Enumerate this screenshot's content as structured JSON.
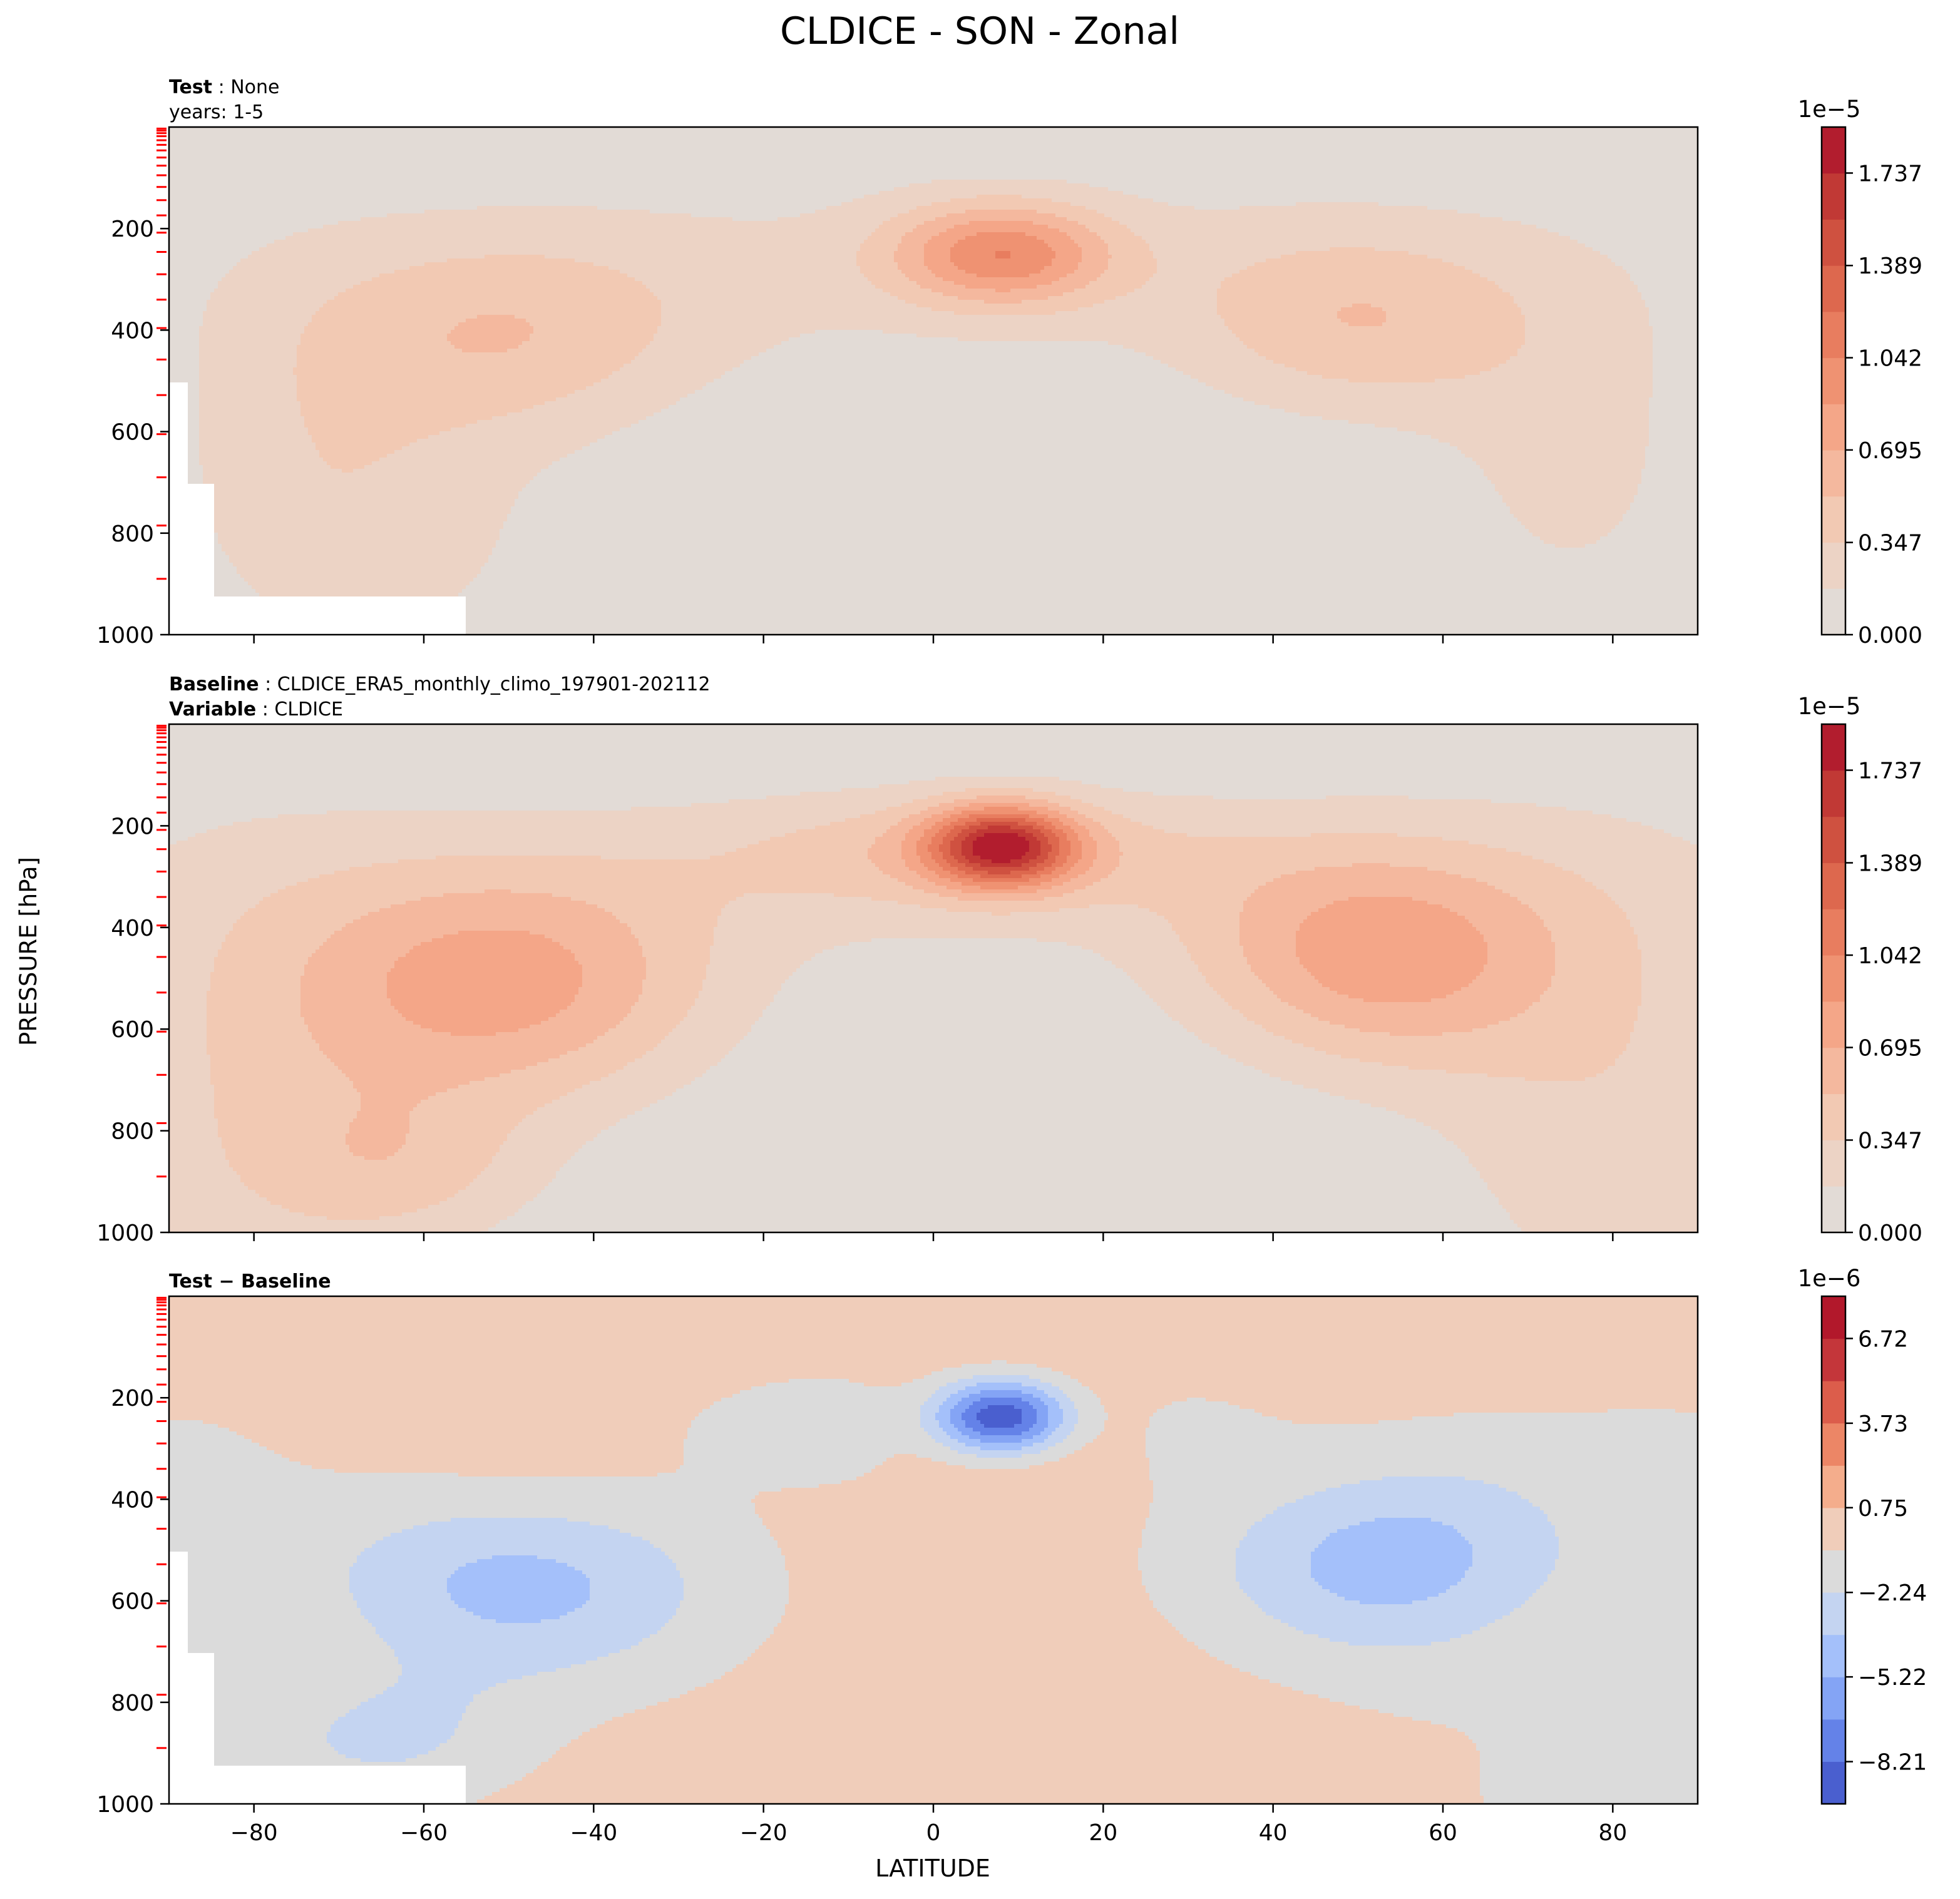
{
  "figure": {
    "title": "CLDICE - SON - Zonal",
    "ylabel": "PRESSURE [hPa]",
    "xlabel": "LATITUDE"
  },
  "panels": [
    {
      "header_lines": [
        {
          "bold": "Test",
          "rest": " : None"
        },
        {
          "bold": "",
          "rest": "years: 1-5"
        }
      ],
      "colorbar": {
        "offset_label": "1e−5",
        "tick_labels": [
          "0.000",
          "0.347",
          "0.695",
          "1.042",
          "1.389",
          "1.737"
        ]
      }
    },
    {
      "header_lines": [
        {
          "bold": "Baseline",
          "rest": " : CLDICE_ERA5_monthly_climo_197901-202112"
        },
        {
          "bold": "Variable",
          "rest": " : CLDICE"
        }
      ],
      "colorbar": {
        "offset_label": "1e−5",
        "tick_labels": [
          "0.000",
          "0.347",
          "0.695",
          "1.042",
          "1.389",
          "1.737"
        ]
      }
    },
    {
      "header_lines": [
        {
          "bold": "Test − Baseline",
          "rest": ""
        }
      ],
      "colorbar": {
        "offset_label": "1e−6",
        "tick_labels": [
          "−8.21",
          "−5.22",
          "−2.24",
          "0.75",
          "3.73",
          "6.72"
        ]
      }
    }
  ],
  "chart_data": [
    {
      "type": "heatmap",
      "subtype": "filled-contour",
      "panel": "Test",
      "x_range": [
        -90,
        90
      ],
      "y_range": [
        1000,
        0
      ],
      "x_ticks": [
        -80,
        -60,
        -40,
        -20,
        0,
        20,
        40,
        60,
        80
      ],
      "y_ticks": [
        200,
        400,
        600,
        800,
        1000
      ],
      "scale": 1e-05,
      "colorbar_levels": [
        0.0,
        0.174,
        0.347,
        0.521,
        0.695,
        0.868,
        1.042,
        1.215,
        1.389,
        1.563,
        1.737,
        1.91
      ],
      "colorbar_ticks": [
        0.0,
        0.347,
        0.695,
        1.042,
        1.389,
        1.737
      ],
      "colors": [
        "#e2dbd6",
        "#ecd3c5",
        "#f2c9b3",
        "#f4b89e",
        "#f4a688",
        "#ef9272",
        "#e87d5f",
        "#dd684e",
        "#cf5140",
        "#c13935",
        "#b21d2e"
      ],
      "features": [
        {
          "name": "tropical upper-troposphere maximum",
          "lat": 8,
          "pressure_hPa": 250,
          "value_1e-5": 1.0
        },
        {
          "name": "southern mid-latitude band",
          "lat_range": [
            -65,
            -30
          ],
          "pressure_hPa": [
            300,
            550
          ],
          "value_1e-5": 0.45
        },
        {
          "name": "northern mid-latitude band",
          "lat_range": [
            35,
            65
          ],
          "pressure_hPa": [
            250,
            450
          ],
          "value_1e-5": 0.45
        }
      ]
    },
    {
      "type": "heatmap",
      "subtype": "filled-contour",
      "panel": "Baseline",
      "x_range": [
        -90,
        90
      ],
      "y_range": [
        1000,
        0
      ],
      "x_ticks": [
        -80,
        -60,
        -40,
        -20,
        0,
        20,
        40,
        60,
        80
      ],
      "y_ticks": [
        200,
        400,
        600,
        800,
        1000
      ],
      "scale": 1e-05,
      "colorbar_levels": [
        0.0,
        0.174,
        0.347,
        0.521,
        0.695,
        0.868,
        1.042,
        1.215,
        1.389,
        1.563,
        1.737,
        1.91
      ],
      "colorbar_ticks": [
        0.0,
        0.347,
        0.695,
        1.042,
        1.389,
        1.737
      ],
      "colors": [
        "#e2dbd6",
        "#ecd3c5",
        "#f2c9b3",
        "#f4b89e",
        "#f4a688",
        "#ef9272",
        "#e87d5f",
        "#dd684e",
        "#cf5140",
        "#c13935",
        "#b21d2e"
      ],
      "features": [
        {
          "name": "tropical upper-troposphere maximum",
          "lat": 8,
          "pressure_hPa": 240,
          "value_1e-5": 1.8
        },
        {
          "name": "southern mid-latitude band",
          "lat_range": [
            -67,
            -35
          ],
          "pressure_hPa": [
            400,
            650
          ],
          "value_1e-5": 0.75
        },
        {
          "name": "northern mid-latitude band",
          "lat_range": [
            40,
            65
          ],
          "pressure_hPa": [
            300,
            550
          ],
          "value_1e-5": 0.75
        }
      ]
    },
    {
      "type": "heatmap",
      "subtype": "filled-contour",
      "panel": "Test − Baseline",
      "x_range": [
        -90,
        90
      ],
      "y_range": [
        1000,
        0
      ],
      "x_ticks": [
        -80,
        -60,
        -40,
        -20,
        0,
        20,
        40,
        60,
        80
      ],
      "y_ticks": [
        200,
        400,
        600,
        800,
        1000
      ],
      "scale": 1e-06,
      "colorbar_levels": [
        -9.7,
        -8.21,
        -6.715,
        -5.22,
        -3.73,
        -2.24,
        -0.745,
        0.75,
        2.24,
        3.73,
        5.225,
        6.72,
        8.21
      ],
      "colorbar_ticks": [
        -8.21,
        -5.22,
        -2.24,
        0.75,
        3.73,
        6.72
      ],
      "colors": [
        "#4a5fcf",
        "#6482e8",
        "#84a4f5",
        "#a4c0fa",
        "#c4d4f1",
        "#dbdbdb",
        "#f0cdba",
        "#f4ad8c",
        "#ec8666",
        "#dc5d4b",
        "#c4363a",
        "#b2182b"
      ],
      "features": [
        {
          "name": "tropical upper-troposphere minimum",
          "lat": 8,
          "pressure_hPa": 250,
          "value_1e-6": -8.0
        },
        {
          "name": "southern mid-latitude negative band",
          "lat_range": [
            -68,
            -45
          ],
          "pressure_hPa": [
            500,
            900
          ],
          "value_1e-6": -5.0
        },
        {
          "name": "northern mid-latitude negative band",
          "lat_range": [
            38,
            65
          ],
          "pressure_hPa": [
            350,
            550
          ],
          "value_1e-6": -5.0
        }
      ]
    }
  ]
}
